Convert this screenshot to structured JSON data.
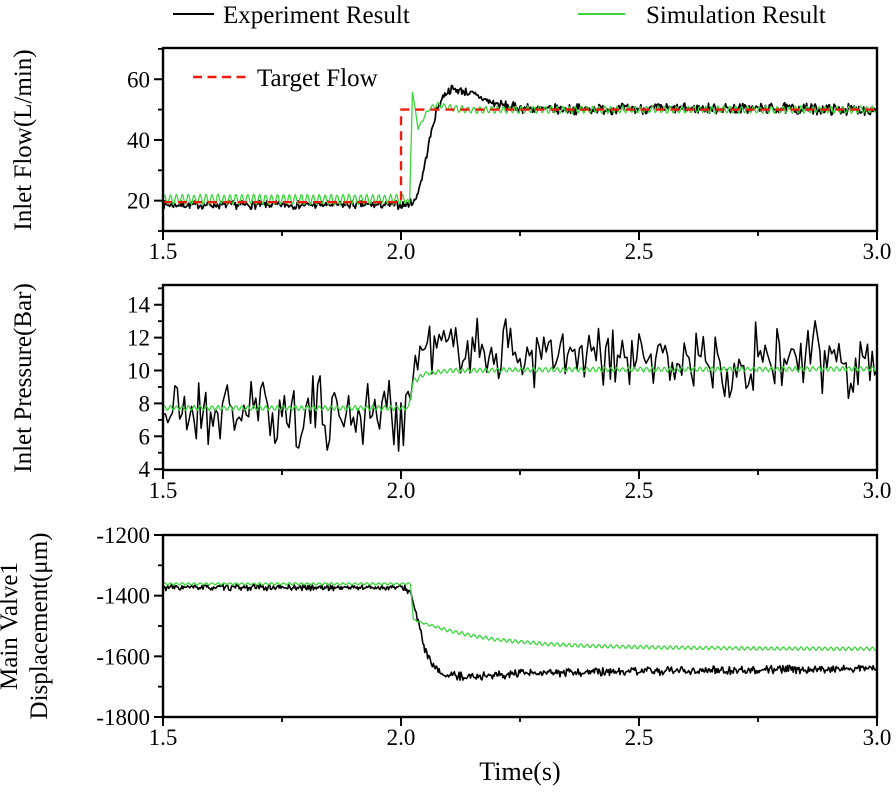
{
  "figure": {
    "legend": [
      {
        "label": "Experiment Result",
        "color": "#000000",
        "style": "solid"
      },
      {
        "label": "Simulation Result",
        "color": "#3cd63c",
        "style": "solid"
      },
      {
        "label": "Target Flow",
        "color": "#ee1c0f",
        "style": "dashed"
      }
    ],
    "legend_position": "top",
    "colors": {
      "axis": "#000000",
      "background": "#ffffff",
      "experiment": "#000000",
      "simulation": "#3cd63c",
      "target": "#ee1c0f"
    }
  },
  "chart_data": [
    {
      "type": "line",
      "ylabel": "Inlet Flow(L/min)",
      "xlabel": "",
      "xlim": [
        1.5,
        3.0
      ],
      "ylim": [
        10,
        70.3
      ],
      "xticks_major": [
        1.5,
        2.0,
        2.5,
        3.0
      ],
      "xticks_minor": [
        1.75,
        2.25,
        2.75
      ],
      "xtick_labels": [
        "1.5",
        "2.0",
        "2.5",
        "3.0"
      ],
      "yticks_major": [
        20,
        40,
        60
      ],
      "ytick_labels": [
        "20",
        "40",
        "60"
      ],
      "yticks_minor": [
        10,
        30,
        50,
        70
      ],
      "grid": false,
      "series": [
        {
          "name": "Experiment Result",
          "color": "#000000",
          "width": 1.7,
          "sample_dt": 0.002,
          "seed": 7,
          "keypoints": [
            [
              1.5,
              18.6
            ],
            [
              2.01,
              18.6
            ],
            [
              2.03,
              20
            ],
            [
              2.045,
              28
            ],
            [
              2.06,
              40
            ],
            [
              2.075,
              50
            ],
            [
              2.09,
              54.8
            ],
            [
              2.105,
              56.8
            ],
            [
              2.13,
              56.2
            ],
            [
              2.16,
              54.5
            ],
            [
              2.19,
              52.3
            ],
            [
              2.23,
              50.8
            ],
            [
              2.3,
              50.1
            ],
            [
              2.5,
              50.3
            ],
            [
              2.75,
              50.4
            ],
            [
              3.0,
              50
            ]
          ],
          "noise_amp": [
            [
              1.5,
              0.8
            ],
            [
              2.0,
              0.8
            ],
            [
              2.05,
              0.7
            ],
            [
              2.2,
              1.0
            ],
            [
              3.0,
              1.1
            ]
          ]
        },
        {
          "name": "Simulation Result",
          "color": "#3cd63c",
          "width": 1.3,
          "sample_dt": 0.002,
          "seed": 3,
          "keypoints": [
            [
              1.5,
              20.4
            ],
            [
              2.012,
              20.4
            ],
            [
              2.018,
              18.8
            ],
            [
              2.024,
              55.6
            ],
            [
              2.03,
              50
            ],
            [
              2.036,
              43.5
            ],
            [
              2.045,
              46.5
            ],
            [
              2.06,
              50.5
            ],
            [
              2.08,
              51.8
            ],
            [
              2.1,
              50.5
            ],
            [
              2.15,
              49.8
            ],
            [
              2.2,
              50
            ],
            [
              3.0,
              50
            ]
          ],
          "noise_amp": [
            [
              1.5,
              0.15
            ],
            [
              3.0,
              0.15
            ]
          ],
          "osc": {
            "freq": 80,
            "amp": [
              [
                1.5,
                1.6
              ],
              [
                2.005,
                1.6
              ],
              [
                2.02,
                0.2
              ],
              [
                2.06,
                0.7
              ],
              [
                2.12,
                1.1
              ],
              [
                3.0,
                1.1
              ]
            ]
          }
        },
        {
          "name": "Target Flow",
          "color": "#ee1c0f",
          "width": 2.4,
          "dash": "9 6",
          "keypoints": [
            [
              1.5,
              19.5
            ],
            [
              2.0,
              19.5
            ],
            [
              2.0,
              50
            ],
            [
              3.0,
              50
            ]
          ]
        }
      ]
    },
    {
      "type": "line",
      "ylabel": "Inlet Pressure(Bar)",
      "xlabel": "",
      "xlim": [
        1.5,
        3.0
      ],
      "ylim": [
        3.95,
        15.2
      ],
      "xticks_major": [
        1.5,
        2.0,
        2.5,
        3.0
      ],
      "xticks_minor": [
        1.75,
        2.25,
        2.75
      ],
      "xtick_labels": [
        "1.5",
        "2.0",
        "2.5",
        "3.0"
      ],
      "yticks_major": [
        4,
        6,
        8,
        10,
        12,
        14
      ],
      "ytick_labels": [
        "4",
        "6",
        "8",
        "10",
        "12",
        "14"
      ],
      "yticks_minor": [
        5,
        7,
        9,
        11,
        13,
        15
      ],
      "grid": false,
      "series": [
        {
          "name": "Experiment Result",
          "color": "#000000",
          "width": 1.5,
          "sample_dt": 0.005,
          "seed": 21,
          "keypoints": [
            [
              1.5,
              7.5
            ],
            [
              2.005,
              7.5
            ],
            [
              2.02,
              8.8
            ],
            [
              2.04,
              11.3
            ],
            [
              2.08,
              11.6
            ],
            [
              2.15,
              11.4
            ],
            [
              2.25,
              11.0
            ],
            [
              2.4,
              10.6
            ],
            [
              2.6,
              10.6
            ],
            [
              2.8,
              10.7
            ],
            [
              3.0,
              10.7
            ]
          ],
          "noise_amp": [
            [
              1.5,
              1.35
            ],
            [
              2.0,
              1.35
            ],
            [
              2.03,
              0.9
            ],
            [
              2.1,
              1.1
            ],
            [
              2.3,
              1.3
            ],
            [
              3.0,
              1.35
            ]
          ]
        },
        {
          "name": "Simulation Result",
          "color": "#3cd63c",
          "width": 1.3,
          "sample_dt": 0.002,
          "seed": 5,
          "keypoints": [
            [
              1.5,
              7.72
            ],
            [
              2.016,
              7.72
            ],
            [
              2.025,
              9.3
            ],
            [
              2.05,
              9.8
            ],
            [
              2.1,
              10.0
            ],
            [
              2.3,
              10.05
            ],
            [
              3.0,
              10.1
            ]
          ],
          "noise_amp": [
            [
              1.5,
              0.02
            ],
            [
              3.0,
              0.02
            ]
          ],
          "osc": {
            "freq": 80,
            "amp": [
              [
                1.5,
                0.13
              ],
              [
                3.0,
                0.13
              ]
            ]
          }
        }
      ]
    },
    {
      "type": "line",
      "ylabel_line1": "Main Valve1",
      "ylabel_line2": "Displacement(μm)",
      "ylabel": "Main Valve1 Displacement(μm)",
      "xlabel": "Time(s)",
      "xlim": [
        1.5,
        3.0
      ],
      "ylim": [
        -1800,
        -1200
      ],
      "xticks_major": [
        1.5,
        2.0,
        2.5,
        3.0
      ],
      "xticks_minor": [
        1.75,
        2.25,
        2.75
      ],
      "xtick_labels": [
        "1.5",
        "2.0",
        "2.5",
        "3.0"
      ],
      "yticks_major": [
        -1800,
        -1600,
        -1400,
        -1200
      ],
      "ytick_labels": [
        "-1800",
        "-1600",
        "-1400",
        "-1200"
      ],
      "yticks_minor": [
        -1700,
        -1500,
        -1300
      ],
      "grid": false,
      "series": [
        {
          "name": "Experiment Result",
          "color": "#000000",
          "width": 1.6,
          "sample_dt": 0.002,
          "seed": 33,
          "keypoints": [
            [
              1.5,
              -1373
            ],
            [
              2.008,
              -1373
            ],
            [
              2.02,
              -1390
            ],
            [
              2.035,
              -1480
            ],
            [
              2.05,
              -1575
            ],
            [
              2.065,
              -1630
            ],
            [
              2.08,
              -1652
            ],
            [
              2.1,
              -1664
            ],
            [
              2.15,
              -1666
            ],
            [
              2.25,
              -1658
            ],
            [
              2.4,
              -1652
            ],
            [
              2.6,
              -1647
            ],
            [
              2.8,
              -1644
            ],
            [
              3.0,
              -1640
            ]
          ],
          "noise_amp": [
            [
              1.5,
              6
            ],
            [
              2.0,
              6
            ],
            [
              2.1,
              8
            ],
            [
              3.0,
              8
            ]
          ]
        },
        {
          "name": "Simulation Result",
          "color": "#3cd63c",
          "width": 1.3,
          "sample_dt": 0.002,
          "seed": 9,
          "keypoints": [
            [
              1.5,
              -1361
            ],
            [
              2.02,
              -1361
            ],
            [
              2.026,
              -1480
            ],
            [
              2.05,
              -1492
            ],
            [
              2.1,
              -1515
            ],
            [
              2.15,
              -1532
            ],
            [
              2.2,
              -1545
            ],
            [
              2.3,
              -1559
            ],
            [
              2.4,
              -1566
            ],
            [
              2.55,
              -1571
            ],
            [
              2.75,
              -1574
            ],
            [
              3.0,
              -1575
            ]
          ],
          "noise_amp": [
            [
              1.5,
              0.5
            ],
            [
              3.0,
              0.5
            ]
          ],
          "osc": {
            "freq": 80,
            "amp": [
              [
                1.5,
                3.5
              ],
              [
                2.02,
                3.5
              ],
              [
                2.03,
                2
              ],
              [
                2.1,
                5.5
              ],
              [
                3.0,
                5.5
              ]
            ]
          }
        }
      ]
    }
  ]
}
